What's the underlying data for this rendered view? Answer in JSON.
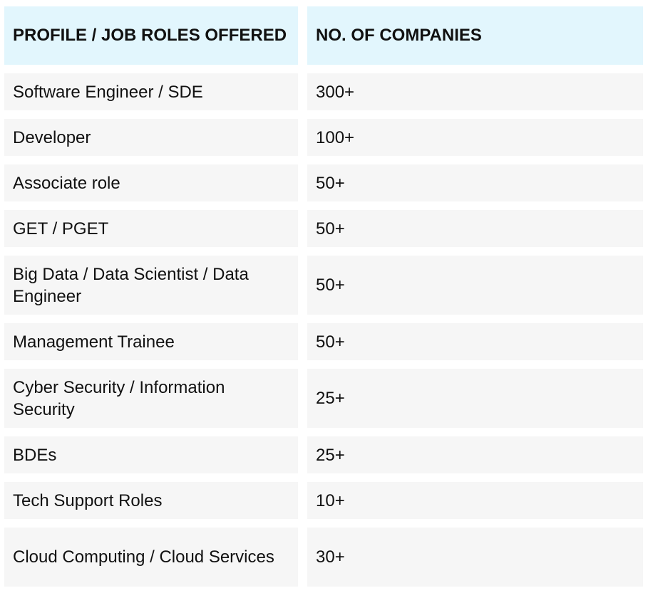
{
  "table": {
    "headers": [
      "PROFILE / JOB ROLES OFFERED",
      "NO. OF COMPANIES"
    ],
    "rows": [
      {
        "role": "Software Engineer / SDE",
        "count": "300+"
      },
      {
        "role": "Developer",
        "count": "100+"
      },
      {
        "role": "Associate role",
        "count": "50+"
      },
      {
        "role": "GET / PGET",
        "count": "50+"
      },
      {
        "role": "Big Data / Data Scientist / Data Engineer",
        "count": "50+"
      },
      {
        "role": "Management Trainee",
        "count": "50+"
      },
      {
        "role": "Cyber Security / Information Security",
        "count": "25+"
      },
      {
        "role": "BDEs",
        "count": "25+"
      },
      {
        "role": "Tech Support Roles",
        "count": "10+"
      },
      {
        "role": "Cloud Computing / Cloud Services",
        "count": "30+"
      }
    ]
  }
}
